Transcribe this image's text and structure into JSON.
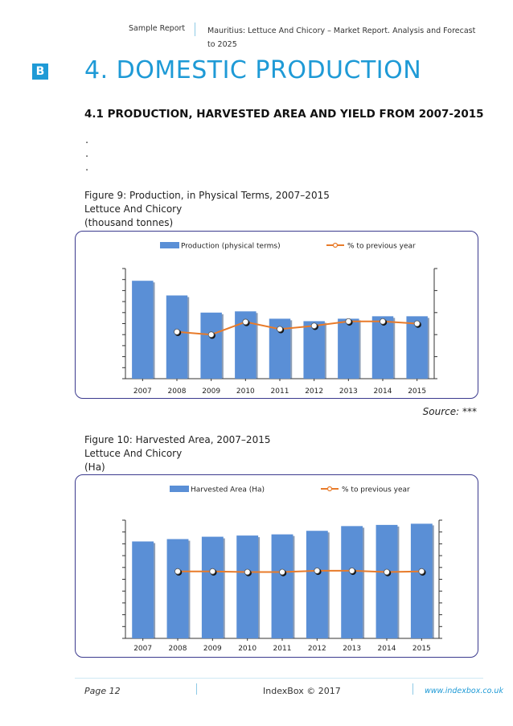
{
  "header": {
    "left": "Sample Report",
    "right": "Mauritius: Lettuce And Chicory – Market Report. Analysis and Forecast to 2025"
  },
  "section": {
    "badge": "B",
    "title": "4. DOMESTIC PRODUCTION",
    "subtitle": "4.1 PRODUCTION, HARVESTED AREA AND YIELD FROM 2007-2015",
    "dots": [
      ".",
      ".",
      "."
    ]
  },
  "figure1": {
    "caption": "Figure 9: Production, in Physical Terms, 2007–2015",
    "product": "Lettuce And Chicory",
    "unit": "(thousand tonnes)",
    "source": "Source: ***"
  },
  "figure2": {
    "caption": "Figure 10: Harvested Area, 2007–2015",
    "product": "Lettuce And Chicory",
    "unit": "(Ha)"
  },
  "chart_data": [
    {
      "type": "bar",
      "title": "Production, in Physical Terms, 2007–2015",
      "categories": [
        "2007",
        "2008",
        "2009",
        "2010",
        "2011",
        "2012",
        "2013",
        "2014",
        "2015"
      ],
      "series": [
        {
          "name": "Production (physical terms)",
          "axis": "left",
          "values": [
            8.0,
            6.8,
            5.4,
            5.5,
            4.9,
            4.7,
            4.9,
            5.1,
            5.1
          ]
        },
        {
          "name": "% to previous year",
          "axis": "right",
          "type": "line",
          "values": [
            null,
            85,
            80,
            103,
            90,
            96,
            104,
            104,
            100
          ]
        }
      ],
      "ylim": [
        0,
        9
      ],
      "y2lim": [
        0,
        200
      ],
      "legend": "top",
      "colors": {
        "bar": "#5a8fd6",
        "line": "#e87b2a"
      }
    },
    {
      "type": "bar",
      "title": "Harvested Area, 2007–2015",
      "categories": [
        "2007",
        "2008",
        "2009",
        "2010",
        "2011",
        "2012",
        "2013",
        "2014",
        "2015"
      ],
      "series": [
        {
          "name": "Harvested Area (Ha)",
          "axis": "left",
          "values": [
            8.2,
            8.4,
            8.6,
            8.7,
            8.8,
            9.1,
            9.5,
            9.6,
            9.7
          ]
        },
        {
          "name": "% to previous year",
          "axis": "right",
          "type": "line",
          "values": [
            null,
            102,
            102,
            101,
            101,
            103,
            103,
            101,
            102
          ]
        }
      ],
      "ylim": [
        0,
        10
      ],
      "y2lim": [
        0,
        180
      ],
      "legend": "top",
      "colors": {
        "bar": "#5a8fd6",
        "line": "#e87b2a"
      }
    }
  ],
  "footer": {
    "page": "Page 12",
    "copyright": "IndexBox © 2017",
    "url": "www.indexbox.co.uk"
  }
}
